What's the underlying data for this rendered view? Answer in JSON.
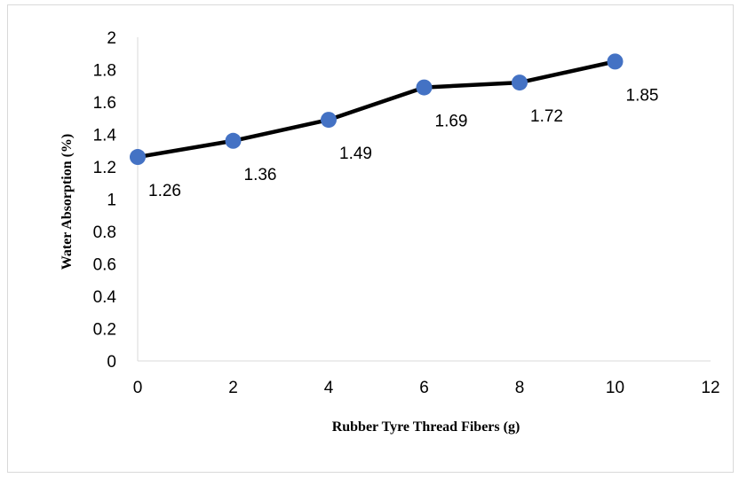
{
  "chart_data": {
    "type": "line",
    "xlabel": "Rubber Tyre Thread Fibers (g)",
    "ylabel": "Water Absorption (%)",
    "xlim": [
      0,
      12
    ],
    "ylim": [
      0,
      2
    ],
    "x_ticks": [
      "0",
      "2",
      "4",
      "6",
      "8",
      "10",
      "12"
    ],
    "y_ticks": [
      "0",
      "0.2",
      "0.4",
      "0.6",
      "0.8",
      "1",
      "1.2",
      "1.4",
      "1.6",
      "1.8",
      "2"
    ],
    "grid": false,
    "legend": "none",
    "series": [
      {
        "x": [
          0,
          2,
          4,
          6,
          8,
          10
        ],
        "y": [
          1.26,
          1.36,
          1.49,
          1.69,
          1.72,
          1.85
        ],
        "data_labels": [
          "1.26",
          "1.36",
          "1.49",
          "1.69",
          "1.72",
          "1.85"
        ],
        "line_color": "#000000",
        "marker_color": "#4472c4"
      }
    ]
  }
}
